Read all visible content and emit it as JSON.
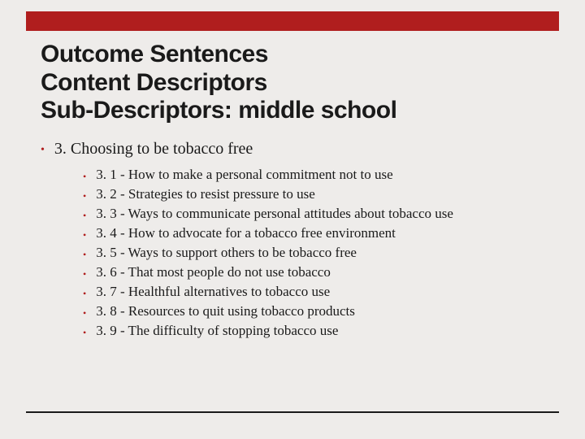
{
  "colors": {
    "accent": "#b01e1e",
    "background": "#eeecea",
    "text": "#1a1a1a"
  },
  "title": {
    "line1": "Outcome Sentences",
    "line2": "Content Descriptors",
    "line3": "Sub-Descriptors: middle school",
    "fontsize": 30,
    "fontweight": 900
  },
  "main": {
    "text": "3. Choosing to be tobacco free",
    "fontsize": 20
  },
  "subs": [
    "3. 1 - How to make a personal commitment not to use",
    "3. 2 - Strategies to resist pressure to use",
    "3. 3 - Ways to communicate personal attitudes about tobacco use",
    "3. 4 - How to advocate for a tobacco free environment",
    "3. 5 - Ways to support others to be tobacco free",
    "3. 6 - That most people do not use tobacco",
    "3. 7 - Healthful alternatives to tobacco use",
    "3. 8 - Resources to quit using tobacco products",
    "3. 9 - The difficulty of stopping tobacco use"
  ],
  "sub_fontsize": 17,
  "bullet_color": "#b01e1e"
}
